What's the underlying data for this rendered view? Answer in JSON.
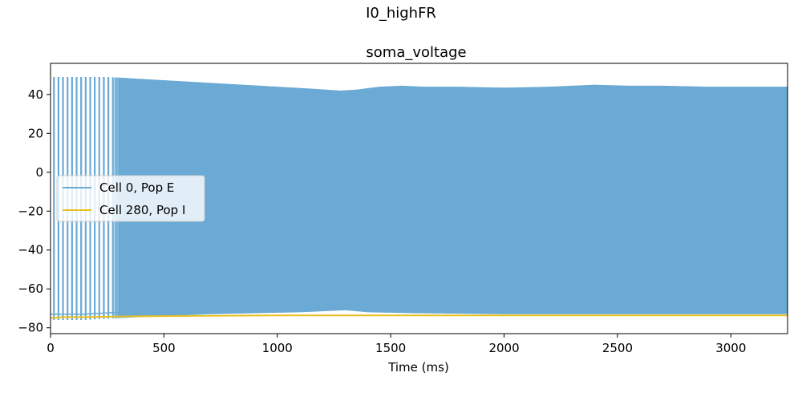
{
  "figure": {
    "suptitle": "I0_highFR"
  },
  "chart_data": {
    "type": "line",
    "title": "soma_voltage",
    "xlabel": "Time (ms)",
    "ylabel": "",
    "xlim": [
      0,
      3250
    ],
    "ylim": [
      -83,
      56
    ],
    "xticks": [
      0,
      500,
      1000,
      1500,
      2000,
      2500,
      3000
    ],
    "yticks": [
      -80,
      -60,
      -40,
      -20,
      0,
      20,
      40
    ],
    "grid": false,
    "legend_position": "center-left",
    "series": [
      {
        "name": "Cell 0, Pop E",
        "color": "#6aaad4",
        "style": "dense spiking trace",
        "initial_spike_times_ms": [
          15,
          35,
          55,
          75,
          95,
          115,
          135,
          155,
          175,
          195,
          215,
          235,
          255,
          275
        ],
        "upper_envelope": {
          "x": [
            0,
            250,
            400,
            550,
            700,
            850,
            1000,
            1150,
            1280,
            1350,
            1450,
            1550,
            1650,
            1800,
            2000,
            2200,
            2400,
            2550,
            2700,
            2900,
            3100,
            3250
          ],
          "y": [
            49,
            49,
            48,
            47,
            46,
            45,
            44,
            43,
            42,
            42.5,
            44,
            44.5,
            44,
            44,
            43.5,
            44,
            45,
            44.5,
            44.5,
            44,
            44,
            44
          ]
        },
        "lower_envelope": {
          "x": [
            0,
            150,
            300,
            500,
            700,
            900,
            1100,
            1300,
            1400,
            1600,
            2000,
            2400,
            2800,
            3250
          ],
          "y": [
            -76,
            -76,
            -75,
            -74,
            -73,
            -72.5,
            -72,
            -71,
            -72,
            -72.5,
            -73,
            -73,
            -73,
            -73
          ]
        },
        "dense_from_ms": 300
      },
      {
        "name": "Cell 280, Pop I",
        "color": "#e8bf1c",
        "x": [
          0,
          50,
          150,
          300,
          500,
          700,
          1000,
          1500,
          2000,
          2500,
          3000,
          3250
        ],
        "y": [
          -75,
          -74.5,
          -74.5,
          -74.2,
          -74,
          -73.8,
          -73.6,
          -73.6,
          -73.6,
          -73.6,
          -73.6,
          -73.6
        ]
      }
    ]
  }
}
